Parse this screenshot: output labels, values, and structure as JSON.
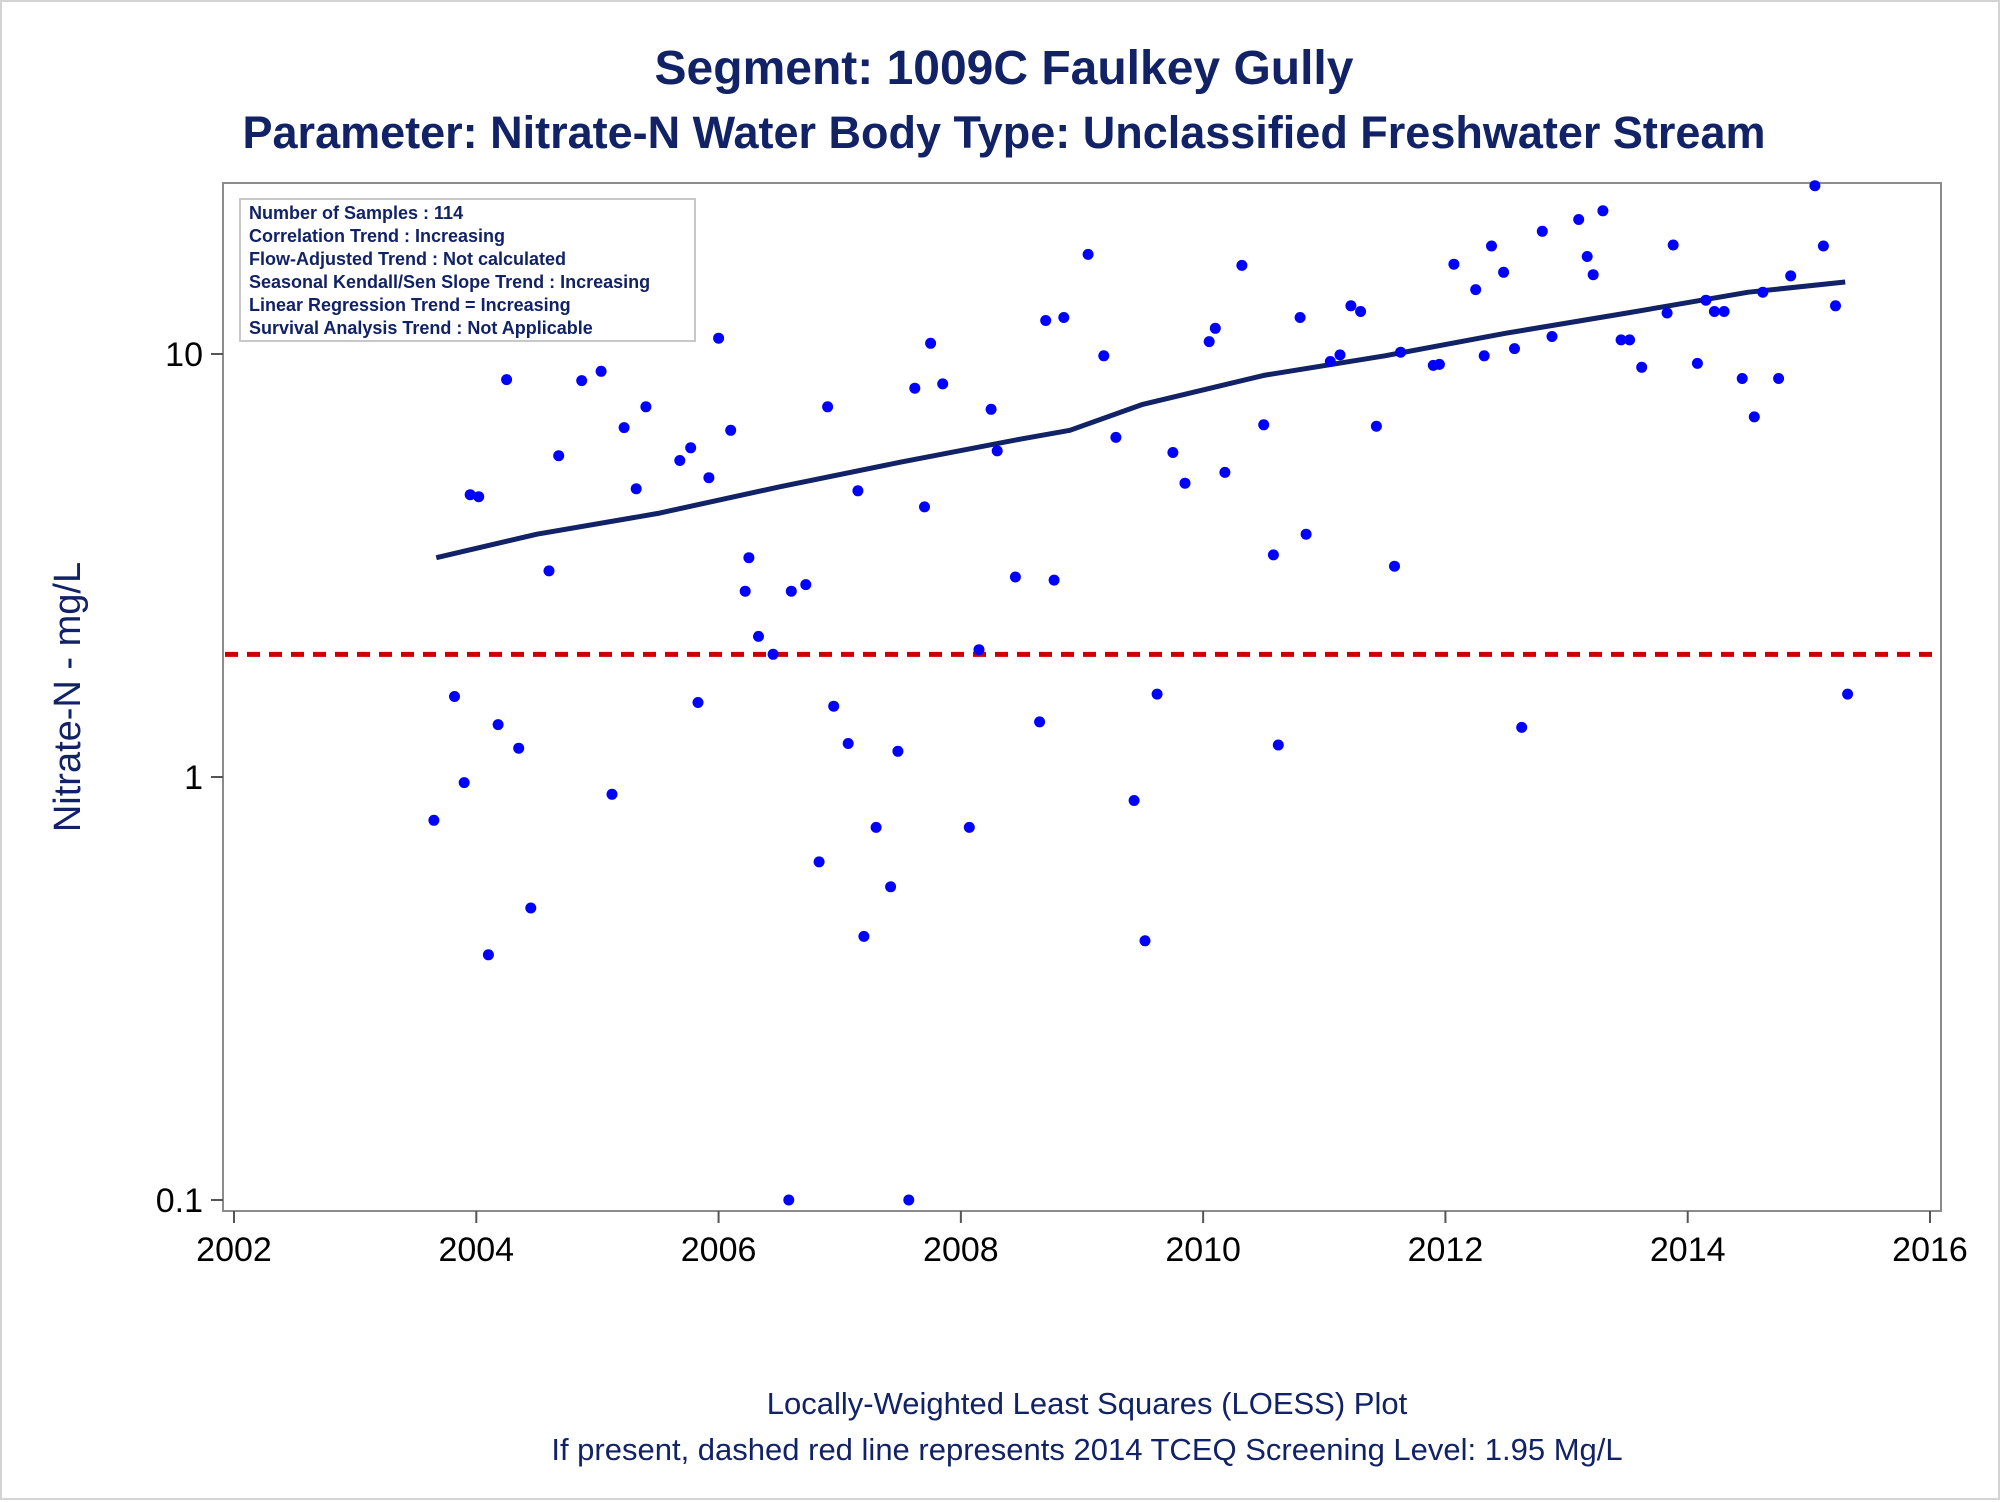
{
  "chart_data": {
    "type": "scatter",
    "title": "Segment: 1009C  Faulkey Gully",
    "subtitle": "Parameter: Nitrate-N   Water Body Type: Unclassified Freshwater Stream",
    "xlabel": "",
    "ylabel": "Nitrate-N - mg/L",
    "x_scale": "linear",
    "y_scale": "log",
    "xlim": [
      2001.9,
      2016.1
    ],
    "ylim": [
      0.1,
      26
    ],
    "x_ticks": [
      "2002",
      "2004",
      "2006",
      "2008",
      "2010",
      "2012",
      "2014",
      "2016"
    ],
    "y_ticks": [
      "0.1",
      "1",
      "10"
    ],
    "grid": false,
    "stats_box": [
      "Number of Samples : 114",
      "Correlation Trend : Increasing",
      "Flow-Adjusted Trend : Not calculated",
      "Seasonal Kendall/Sen Slope Trend : Increasing",
      "Linear Regression Trend = Increasing",
      "Survival Analysis Trend : Not Applicable"
    ],
    "screening_level": {
      "value": 1.95,
      "color": "#cc0000",
      "style": "dashed"
    },
    "loess_line": {
      "color": "#112266",
      "x": [
        2003.67,
        2004.5,
        2005.5,
        2006.5,
        2007.5,
        2008.5,
        2008.9,
        2009.5,
        2010.5,
        2011.5,
        2012.5,
        2013.5,
        2014.5,
        2015.3
      ],
      "y": [
        3.3,
        3.75,
        4.2,
        4.85,
        5.55,
        6.3,
        6.6,
        7.6,
        8.9,
        9.9,
        11.2,
        12.5,
        14.0,
        14.8
      ]
    },
    "series": [
      {
        "marker_color": "#0000ff",
        "x": [
          2003.65,
          2003.82,
          2003.9,
          2003.95,
          2004.02,
          2004.1,
          2004.18,
          2004.25,
          2004.35,
          2004.45,
          2004.55,
          2004.6,
          2004.68,
          2004.8,
          2004.87,
          2004.95,
          2005.03,
          2005.12,
          2005.22,
          2005.32,
          2005.4,
          2005.68,
          2005.77,
          2005.83,
          2005.92,
          2006.0,
          2006.1,
          2006.22,
          2006.25,
          2006.33,
          2006.45,
          2006.58,
          2006.6,
          2006.72,
          2006.83,
          2006.9,
          2006.95,
          2007.07,
          2007.15,
          2007.2,
          2007.3,
          2007.42,
          2007.48,
          2007.57,
          2007.62,
          2007.7,
          2007.75,
          2007.85,
          2008.07,
          2008.15,
          2008.25,
          2008.3,
          2008.45,
          2008.65,
          2008.7,
          2008.77,
          2008.85,
          2009.05,
          2009.18,
          2009.28,
          2009.43,
          2009.52,
          2009.62,
          2009.75,
          2009.85,
          2010.05,
          2010.1,
          2010.18,
          2010.32,
          2010.5,
          2010.58,
          2010.62,
          2010.8,
          2010.85,
          2011.05,
          2011.13,
          2011.22,
          2011.3,
          2011.43,
          2011.58,
          2011.63,
          2011.9,
          2011.95,
          2012.07,
          2012.25,
          2012.32,
          2012.38,
          2012.48,
          2012.57,
          2012.63,
          2012.8,
          2012.88,
          2013.1,
          2013.17,
          2013.22,
          2013.3,
          2013.45,
          2013.52,
          2013.62,
          2013.83,
          2013.88,
          2014.08,
          2014.15,
          2014.22,
          2014.3,
          2014.45,
          2014.55,
          2014.62,
          2014.75,
          2014.85,
          2015.05,
          2015.12,
          2015.22,
          2015.32
        ],
        "y": [
          0.79,
          1.55,
          0.97,
          4.65,
          4.6,
          0.38,
          1.33,
          8.7,
          1.17,
          0.49,
          11.1,
          3.07,
          5.75,
          11.0,
          8.65,
          13.5,
          9.1,
          0.91,
          6.7,
          4.8,
          7.5,
          5.6,
          6.0,
          1.5,
          5.1,
          10.9,
          6.6,
          2.75,
          3.3,
          2.15,
          1.95,
          0.1,
          2.75,
          2.85,
          0.63,
          7.5,
          1.47,
          1.2,
          4.75,
          0.42,
          0.76,
          0.55,
          1.15,
          0.1,
          8.3,
          4.35,
          10.6,
          8.5,
          0.76,
          2.0,
          7.4,
          5.9,
          2.97,
          1.35,
          12.0,
          2.92,
          12.2,
          17.2,
          9.9,
          6.35,
          0.88,
          0.41,
          1.57,
          5.85,
          4.95,
          10.7,
          11.5,
          5.25,
          16.2,
          6.8,
          3.35,
          1.19,
          12.2,
          3.75,
          9.6,
          9.95,
          13.0,
          12.6,
          6.75,
          3.15,
          10.1,
          9.4,
          9.45,
          16.3,
          14.2,
          9.9,
          18.0,
          15.6,
          10.3,
          1.31,
          19.5,
          11.0,
          20.8,
          17.0,
          15.4,
          21.8,
          10.8,
          10.8,
          9.3,
          12.5,
          18.1,
          9.5,
          13.4,
          12.6,
          12.6,
          8.75,
          7.1,
          14.0,
          8.75,
          15.3,
          25.0,
          18.0,
          13.0,
          1.57
        ]
      }
    ],
    "footnotes": [
      "Locally-Weighted Least Squares (LOESS) Plot",
      "If present, dashed red line represents 2014 TCEQ Screening Level: 1.95 Mg/L"
    ]
  }
}
